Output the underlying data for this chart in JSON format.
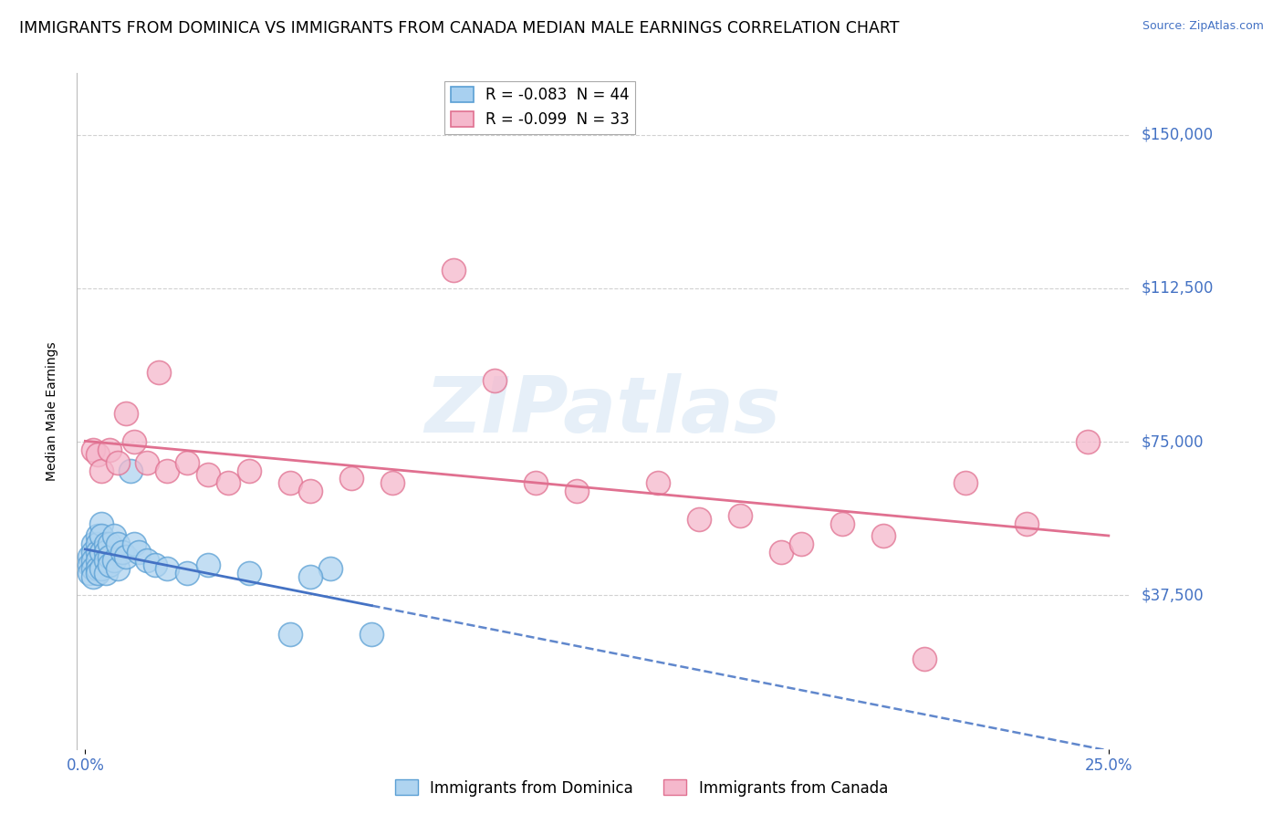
{
  "title": "IMMIGRANTS FROM DOMINICA VS IMMIGRANTS FROM CANADA MEDIAN MALE EARNINGS CORRELATION CHART",
  "source": "Source: ZipAtlas.com",
  "xlabel": "",
  "ylabel": "Median Male Earnings",
  "xlim": [
    -0.002,
    0.255
  ],
  "ylim": [
    0,
    165000
  ],
  "yticks": [
    37500,
    75000,
    112500,
    150000
  ],
  "ytick_labels": [
    "$37,500",
    "$75,000",
    "$112,500",
    "$150,000"
  ],
  "xticks": [
    0.0,
    0.25
  ],
  "xtick_labels": [
    "0.0%",
    "25.0%"
  ],
  "legend_entries": [
    {
      "label": "R = -0.083  N = 44",
      "color": "#a8d0f0"
    },
    {
      "label": "R = -0.099  N = 33",
      "color": "#f5b8cc"
    }
  ],
  "series_dominica": {
    "color": "#5a9fd4",
    "fill_color": "#afd4f0",
    "x": [
      0.001,
      0.001,
      0.001,
      0.002,
      0.002,
      0.002,
      0.002,
      0.002,
      0.003,
      0.003,
      0.003,
      0.003,
      0.003,
      0.003,
      0.004,
      0.004,
      0.004,
      0.004,
      0.005,
      0.005,
      0.005,
      0.005,
      0.006,
      0.006,
      0.006,
      0.007,
      0.007,
      0.008,
      0.008,
      0.009,
      0.01,
      0.011,
      0.012,
      0.013,
      0.015,
      0.017,
      0.02,
      0.025,
      0.03,
      0.04,
      0.06,
      0.07,
      0.05,
      0.055
    ],
    "y": [
      47000,
      45000,
      43000,
      50000,
      48000,
      46000,
      44000,
      42000,
      52000,
      50000,
      48000,
      46000,
      44000,
      43000,
      55000,
      52000,
      48000,
      44000,
      50000,
      48000,
      46000,
      43000,
      50000,
      47000,
      45000,
      52000,
      46000,
      50000,
      44000,
      48000,
      47000,
      68000,
      50000,
      48000,
      46000,
      45000,
      44000,
      43000,
      45000,
      43000,
      44000,
      28000,
      28000,
      42000
    ]
  },
  "series_canada": {
    "color": "#e07090",
    "fill_color": "#f5b8cc",
    "x": [
      0.002,
      0.003,
      0.004,
      0.006,
      0.008,
      0.01,
      0.012,
      0.015,
      0.018,
      0.02,
      0.025,
      0.03,
      0.035,
      0.04,
      0.05,
      0.055,
      0.065,
      0.075,
      0.09,
      0.1,
      0.11,
      0.12,
      0.14,
      0.15,
      0.16,
      0.17,
      0.175,
      0.185,
      0.195,
      0.205,
      0.215,
      0.23,
      0.245
    ],
    "y": [
      73000,
      72000,
      68000,
      73000,
      70000,
      82000,
      75000,
      70000,
      92000,
      68000,
      70000,
      67000,
      65000,
      68000,
      65000,
      63000,
      66000,
      65000,
      117000,
      90000,
      65000,
      63000,
      65000,
      56000,
      57000,
      48000,
      50000,
      55000,
      52000,
      22000,
      65000,
      55000,
      75000
    ]
  },
  "watermark_text": "ZIPatlas",
  "background_color": "#ffffff",
  "grid_color": "#cccccc",
  "tick_color": "#4472c4",
  "title_fontsize": 12.5,
  "axis_label_fontsize": 10,
  "tick_fontsize": 12,
  "legend_fontsize": 12
}
